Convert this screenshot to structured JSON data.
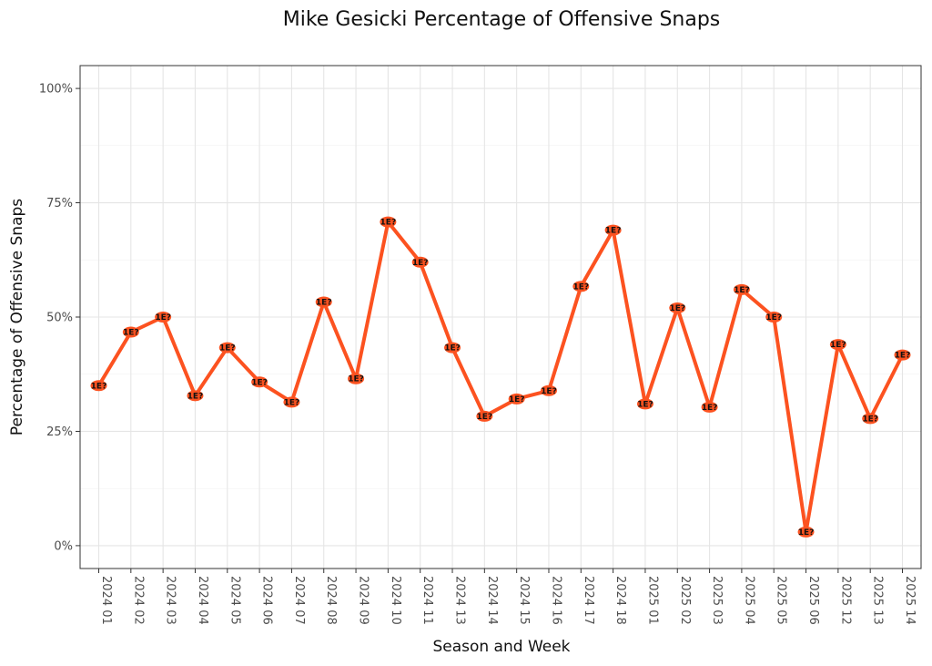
{
  "chart_data": {
    "type": "line",
    "title": "Mike Gesicki Percentage of Offensive Snaps",
    "xlabel": "Season and Week",
    "ylabel": "Percentage of Offensive Snaps",
    "ylim": [
      -0.05,
      1.05
    ],
    "yticks": [
      0,
      0.25,
      0.5,
      0.75,
      1.0
    ],
    "ytick_labels": [
      "0%",
      "25%",
      "50%",
      "75%",
      "100%"
    ],
    "grid": true,
    "line_color": "#fc5220",
    "marker_color": "#fc5220",
    "marker_label": "1E?",
    "categories": [
      "2024 01",
      "2024 02",
      "2024 03",
      "2024 04",
      "2024 05",
      "2024 06",
      "2024 07",
      "2024 08",
      "2024 09",
      "2024 10",
      "2024 11",
      "2024 13",
      "2024 14",
      "2024 15",
      "2024 16",
      "2024 17",
      "2024 18",
      "2025 01",
      "2025 02",
      "2025 03",
      "2025 04",
      "2025 05",
      "2025 06",
      "2025 12",
      "2025 13",
      "2025 14"
    ],
    "values": [
      0.35,
      0.467,
      0.5,
      0.328,
      0.433,
      0.358,
      0.314,
      0.533,
      0.365,
      0.708,
      0.62,
      0.433,
      0.283,
      0.321,
      0.339,
      0.567,
      0.69,
      0.31,
      0.52,
      0.303,
      0.56,
      0.5,
      0.03,
      0.44,
      0.278,
      0.417
    ]
  }
}
